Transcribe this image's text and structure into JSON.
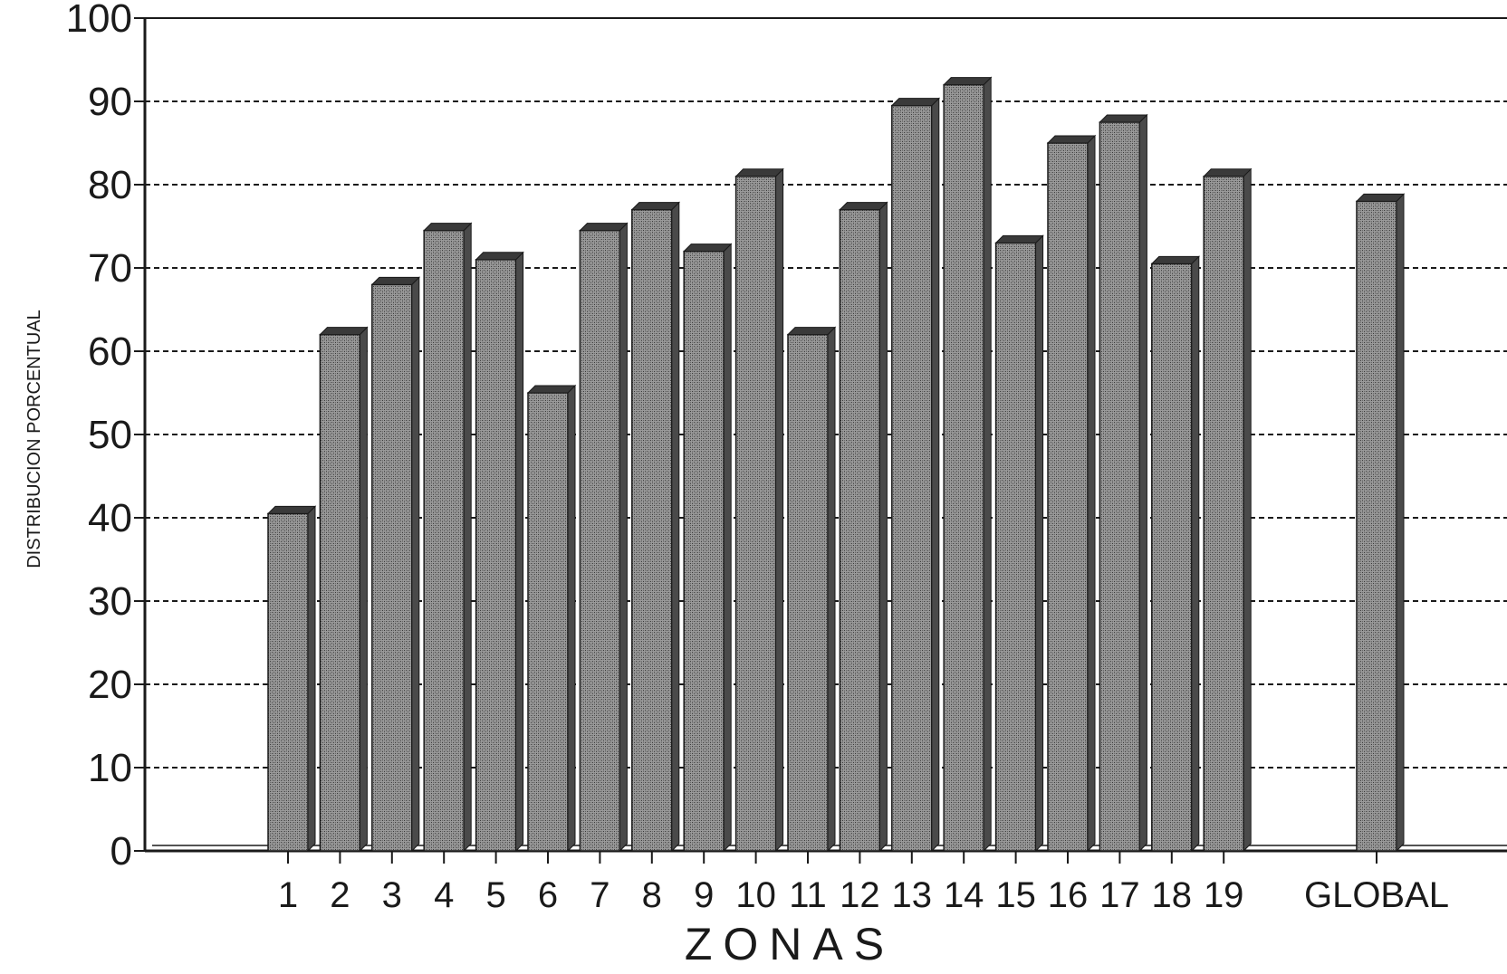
{
  "chart_data": {
    "type": "bar",
    "categories": [
      "1",
      "2",
      "3",
      "4",
      "5",
      "6",
      "7",
      "8",
      "9",
      "10",
      "11",
      "12",
      "13",
      "14",
      "15",
      "16",
      "17",
      "18",
      "19",
      "GLOBAL"
    ],
    "values": [
      40.5,
      62,
      68,
      74.5,
      71,
      55,
      74.5,
      77,
      72,
      81,
      62,
      77,
      89.5,
      92,
      73,
      85,
      87.5,
      70.5,
      81,
      78
    ],
    "title": "",
    "xlabel": "ZONAS",
    "ylabel": "DISTRIBUCION PORCENTUAL",
    "ylim": [
      0,
      100
    ],
    "yticks": [
      "0",
      "10",
      "20",
      "30",
      "40",
      "50",
      "60",
      "70",
      "80",
      "90",
      "100"
    ],
    "grid": true,
    "colors": {
      "bar_front": "#8a8a8a",
      "bar_side": "#4a4a4a",
      "bar_top": "#3a3a3a",
      "axis": "#1a1a1a"
    }
  }
}
